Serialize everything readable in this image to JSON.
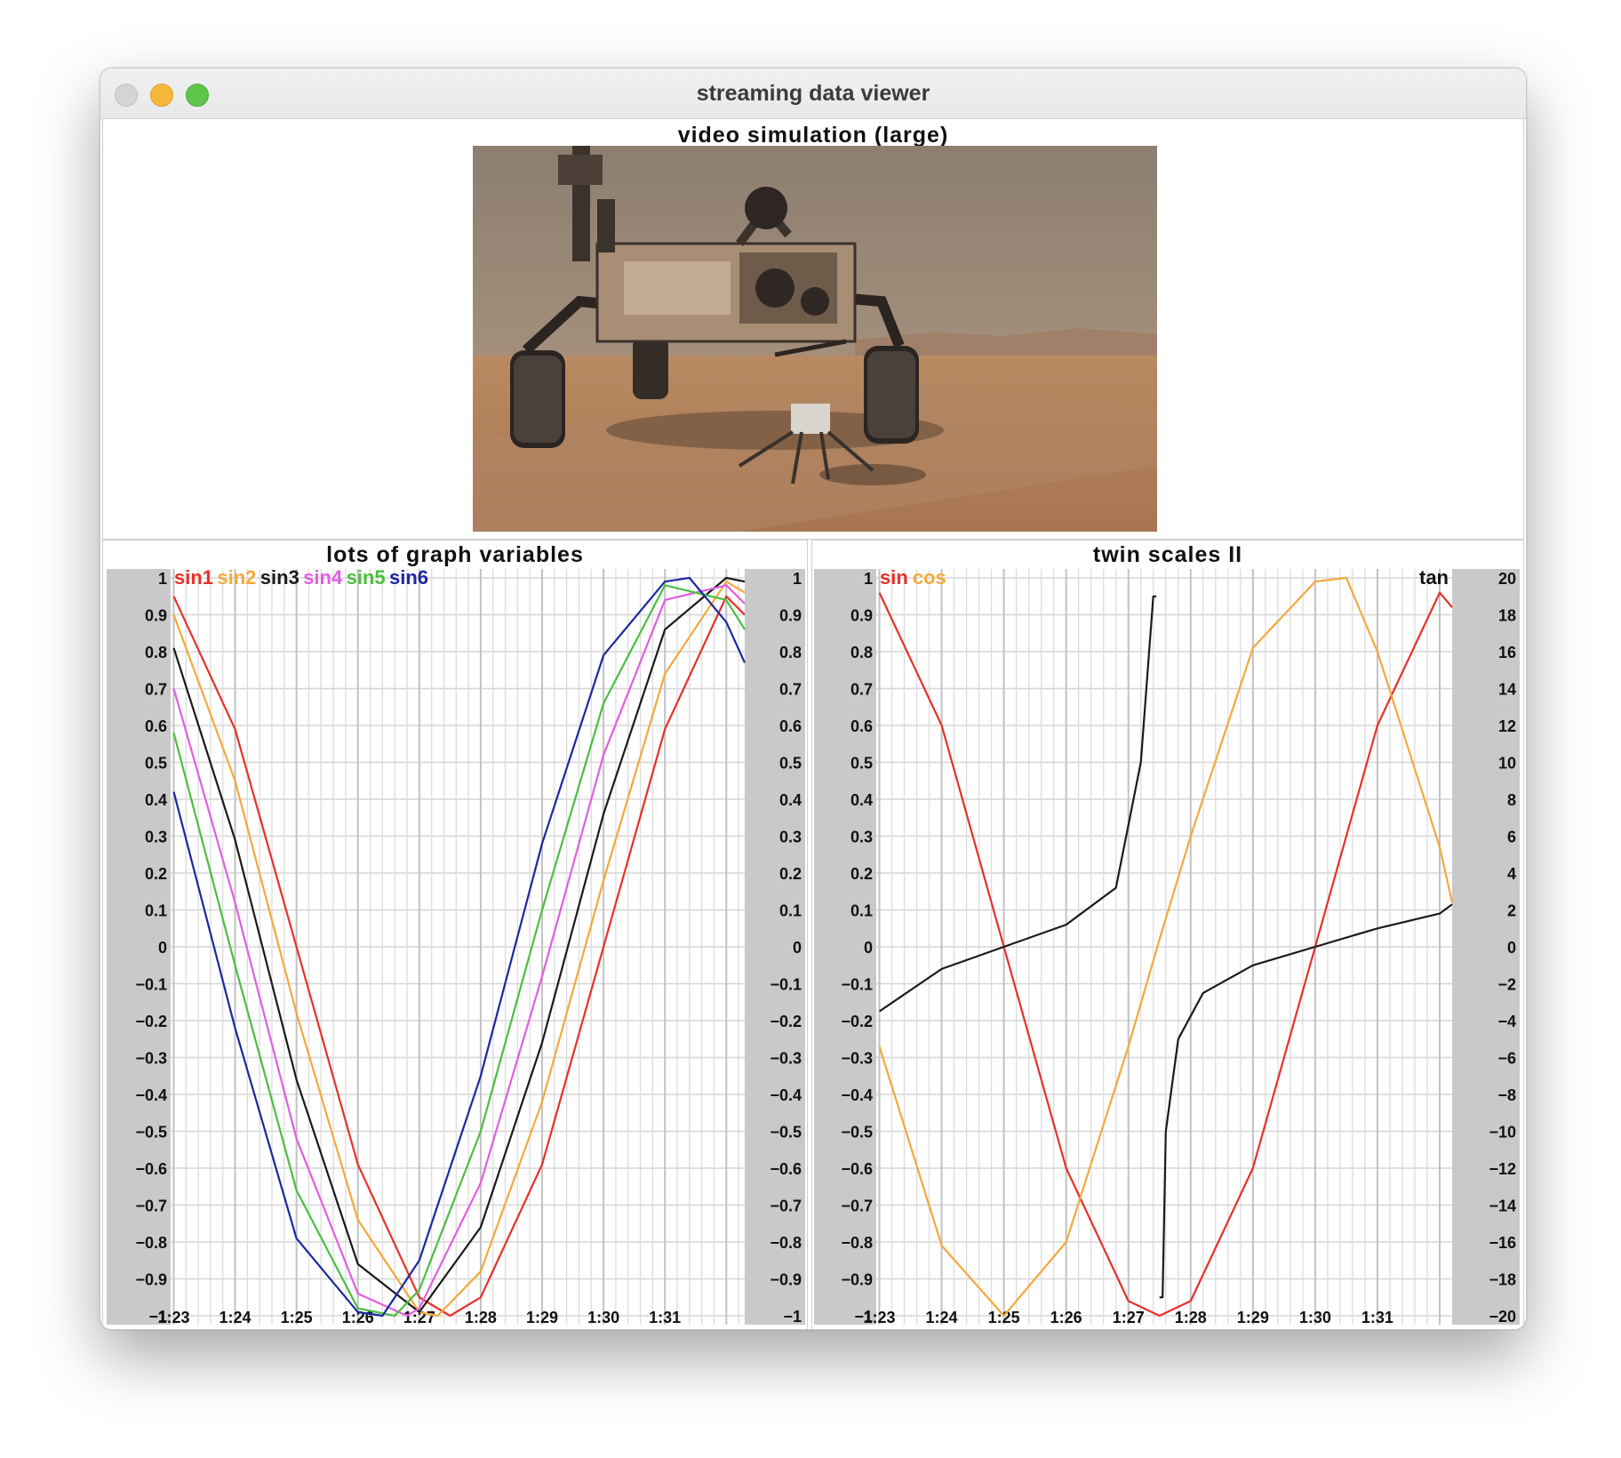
{
  "window": {
    "title": "streaming data viewer"
  },
  "video": {
    "title": "video simulation (large)"
  },
  "left_plot": {
    "title": "lots of graph variables"
  },
  "right_plot": {
    "title": "twin scales II"
  },
  "chart_data": [
    {
      "type": "line",
      "title": "lots of graph variables",
      "x": [
        "1:23",
        "1:24",
        "1:25",
        "1:26",
        "1:27",
        "1:28",
        "1:29",
        "1:30",
        "1:31"
      ],
      "xlim": [
        82.95,
        92.3
      ],
      "ylim": [
        -1,
        1
      ],
      "y_ticks": [
        1,
        0.9,
        0.8,
        0.7,
        0.6,
        0.5,
        0.4,
        0.3,
        0.2,
        0.1,
        0,
        -0.1,
        -0.2,
        -0.3,
        -0.4,
        -0.5,
        -0.6,
        -0.7,
        -0.8,
        -0.9,
        -1
      ],
      "right_y_ticks": [
        1,
        0.9,
        0.8,
        0.7,
        0.6,
        0.5,
        0.4,
        0.3,
        0.2,
        0.1,
        0,
        -0.1,
        -0.2,
        -0.3,
        -0.4,
        -0.5,
        -0.6,
        -0.7,
        -0.8,
        -0.9,
        -1
      ],
      "grid": true,
      "legend": "top-left",
      "series": [
        {
          "name": "sin1",
          "color": "#e8302a",
          "x": [
            83.0,
            84.0,
            85.0,
            86.0,
            87.0,
            87.5,
            88.0,
            89.0,
            90.0,
            91.0,
            92.0,
            92.3
          ],
          "values": [
            0.95,
            0.59,
            0.0,
            -0.59,
            -0.95,
            -1.0,
            -0.95,
            -0.59,
            0.0,
            0.59,
            0.95,
            0.9
          ]
        },
        {
          "name": "sin2",
          "color": "#f4a93a",
          "x": [
            83.0,
            84.0,
            85.0,
            86.0,
            87.0,
            87.3,
            88.0,
            89.0,
            90.0,
            91.0,
            92.0,
            92.3
          ],
          "values": [
            0.9,
            0.45,
            -0.18,
            -0.74,
            -0.99,
            -1.0,
            -0.88,
            -0.42,
            0.18,
            0.74,
            0.99,
            0.96
          ]
        },
        {
          "name": "sin3",
          "color": "#1a1a1a",
          "x": [
            83.0,
            84.0,
            85.0,
            86.0,
            87.0,
            88.0,
            89.0,
            90.0,
            91.0,
            92.0,
            92.3
          ],
          "values": [
            0.81,
            0.29,
            -0.36,
            -0.86,
            -0.99,
            -0.76,
            -0.26,
            0.36,
            0.86,
            1.0,
            0.99
          ]
        },
        {
          "name": "sin4",
          "color": "#e25ee0",
          "x": [
            83.0,
            84.0,
            85.0,
            86.0,
            86.8,
            87.0,
            88.0,
            89.0,
            90.0,
            91.0,
            92.0,
            92.3
          ],
          "values": [
            0.7,
            0.12,
            -0.52,
            -0.94,
            -1.0,
            -0.98,
            -0.64,
            -0.08,
            0.52,
            0.94,
            0.98,
            0.93
          ]
        },
        {
          "name": "sin5",
          "color": "#4bbf3f",
          "x": [
            83.0,
            84.0,
            85.0,
            86.0,
            86.6,
            87.0,
            88.0,
            89.0,
            90.0,
            91.0,
            92.0,
            92.3
          ],
          "values": [
            0.58,
            -0.05,
            -0.66,
            -0.98,
            -1.0,
            -0.93,
            -0.5,
            0.1,
            0.66,
            0.98,
            0.94,
            0.86
          ]
        },
        {
          "name": "sin6",
          "color": "#1d27a0",
          "x": [
            83.0,
            84.0,
            85.0,
            86.0,
            86.4,
            87.0,
            88.0,
            89.0,
            90.0,
            91.0,
            91.4,
            92.0,
            92.3
          ],
          "values": [
            0.42,
            -0.22,
            -0.79,
            -0.99,
            -1.0,
            -0.85,
            -0.35,
            0.28,
            0.79,
            0.99,
            1.0,
            0.88,
            0.77
          ]
        }
      ]
    },
    {
      "type": "line",
      "title": "twin scales II",
      "x": [
        "1:23",
        "1:24",
        "1:25",
        "1:26",
        "1:27",
        "1:28",
        "1:29",
        "1:30",
        "1:31"
      ],
      "xlim": [
        82.95,
        92.2
      ],
      "ylim": [
        -1,
        1
      ],
      "y2lim": [
        -20,
        20
      ],
      "y_ticks": [
        1,
        0.9,
        0.8,
        0.7,
        0.6,
        0.5,
        0.4,
        0.3,
        0.2,
        0.1,
        0,
        -0.1,
        -0.2,
        -0.3,
        -0.4,
        -0.5,
        -0.6,
        -0.7,
        -0.8,
        -0.9,
        -1
      ],
      "y2_ticks": [
        20,
        18,
        16,
        14,
        12,
        10,
        8,
        6,
        4,
        2,
        0,
        -2,
        -4,
        -6,
        -8,
        -10,
        -12,
        -14,
        -16,
        -18,
        -20
      ],
      "grid": true,
      "legend": "top-left",
      "legend_right": "top-right",
      "series": [
        {
          "name": "sin",
          "color": "#e8302a",
          "axis": "left",
          "x": [
            83.0,
            84.0,
            85.0,
            86.0,
            87.0,
            87.5,
            88.0,
            89.0,
            90.0,
            91.0,
            92.0,
            92.2
          ],
          "values": [
            0.96,
            0.6,
            0.0,
            -0.6,
            -0.96,
            -1.0,
            -0.96,
            -0.6,
            0.0,
            0.6,
            0.96,
            0.92
          ]
        },
        {
          "name": "cos",
          "color": "#f4a93a",
          "axis": "left",
          "x": [
            83.0,
            84.0,
            85.0,
            86.0,
            87.0,
            87.5,
            88.0,
            89.0,
            90.0,
            90.5,
            91.0,
            92.0,
            92.2
          ],
          "values": [
            -0.27,
            -0.81,
            -1.0,
            -0.8,
            -0.27,
            0.02,
            0.3,
            0.81,
            0.99,
            1.0,
            0.8,
            0.27,
            0.12
          ]
        },
        {
          "name": "tan",
          "color": "#1a1a1a",
          "axis": "right",
          "x": [
            83.0,
            84.0,
            85.0,
            86.0,
            86.8,
            87.2,
            87.4,
            87.45,
            87.5,
            87.55,
            87.6,
            87.8,
            88.2,
            89.0,
            90.0,
            91.0,
            92.0,
            92.2
          ],
          "values": [
            -3.5,
            -1.2,
            0.0,
            1.2,
            3.2,
            10.0,
            19.0,
            19.0,
            -19.0,
            -19.0,
            -10.0,
            -5.0,
            -2.5,
            -1.0,
            0.0,
            1.0,
            1.8,
            2.3
          ]
        }
      ]
    }
  ]
}
